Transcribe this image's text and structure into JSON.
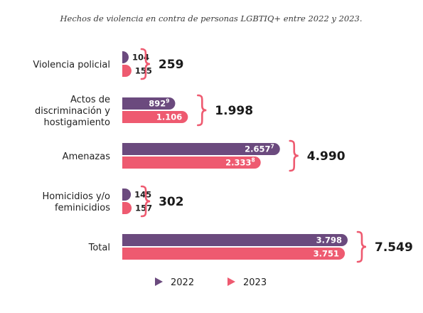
{
  "chart_data": {
    "type": "bar",
    "title": "Hechos de violencia en contra de personas LGBTIQ+ entre 2022 y 2023.",
    "categories": [
      [
        "Violencia policial"
      ],
      [
        "Actos de",
        "discriminación y",
        "hostigamiento"
      ],
      [
        "Amenazas"
      ],
      [
        "Homicidios y/o",
        "feminicidios"
      ],
      [
        "Total"
      ]
    ],
    "series": [
      {
        "name": "2022",
        "color": "#6b4a7e",
        "values": [
          104,
          892,
          2657,
          145,
          3798
        ],
        "labels": [
          "104",
          "892",
          "2.657",
          "145",
          "3.798"
        ],
        "footnotes": [
          "",
          "9",
          "7",
          "",
          ""
        ]
      },
      {
        "name": "2023",
        "color": "#ee5a70",
        "values": [
          155,
          1106,
          2333,
          157,
          3751
        ],
        "labels": [
          "155",
          "1.106",
          "2.333",
          "157",
          "3.751"
        ],
        "footnotes": [
          "",
          "",
          "8",
          "",
          ""
        ]
      }
    ],
    "totals": [
      "259",
      "1.998",
      "4.990",
      "302",
      "7.549"
    ],
    "brace_color": "#ee5a70",
    "xlim": [
      0,
      3798
    ],
    "legend_position": "bottom"
  }
}
